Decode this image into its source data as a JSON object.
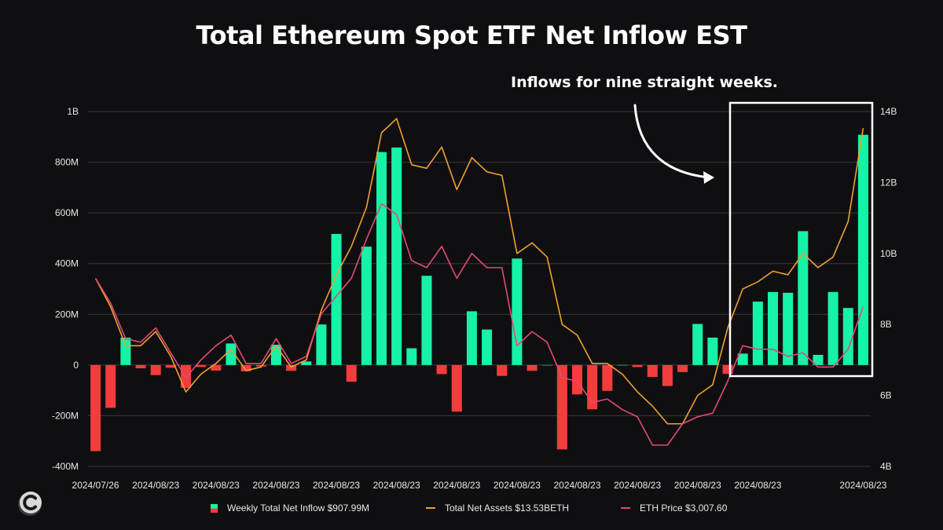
{
  "title": "Total Ethereum Spot ETF Net Inflow EST",
  "annotation": "Inflows for nine straight weeks.",
  "legend": {
    "inflow": "Weekly Total Net Inflow $907.99M",
    "assets": "Total Net Assets $13.53BETH",
    "price": "ETH Price $3,007.60"
  },
  "colors": {
    "positive": "#16f2a6",
    "negative": "#f43c3c",
    "assets_line": "#f0a030",
    "price_line": "#e04a78",
    "background": "#0f0f11",
    "grid": "#3a3a3e"
  },
  "icons": {
    "logo": "c-logo-icon",
    "arrow": "curved-arrow-icon"
  },
  "chart_data": {
    "type": "bar",
    "title": "Total Ethereum Spot ETF Net Inflow EST",
    "x_tick_labels": [
      "2024/07/26",
      "2024/08/23",
      "2024/08/23",
      "2024/08/23",
      "2024/08/23",
      "2024/08/23",
      "2024/08/23",
      "2024/08/23",
      "2024/08/23",
      "2024/08/23",
      "2024/08/23",
      "2024/08/23",
      "2024/08/23"
    ],
    "y_left": {
      "ticks": [
        "-400M",
        "-200M",
        "0",
        "200M",
        "400M",
        "600M",
        "800M",
        "1B"
      ],
      "lim": [
        -400,
        1000
      ],
      "unit": "M"
    },
    "y_right": {
      "ticks": [
        "4B",
        "6B",
        "8B",
        "10B",
        "12B",
        "14B"
      ],
      "lim": [
        4,
        14
      ],
      "unit": "B"
    },
    "series": [
      {
        "name": "Weekly Total Net Inflow $907.99M",
        "type": "bar",
        "values": [
          -340,
          -169,
          108,
          -13,
          -40,
          -11,
          -90,
          -8,
          -22,
          85,
          -25,
          -6,
          80,
          -23,
          14,
          160,
          517,
          -66,
          467,
          840,
          858,
          66,
          352,
          -36,
          -184,
          212,
          140,
          -43,
          420,
          -23,
          0,
          -333,
          -116,
          -175,
          -102,
          0,
          -8,
          -47,
          -83,
          -28,
          162,
          108,
          -35,
          45,
          250,
          288,
          285,
          528,
          40,
          288,
          225,
          908
        ]
      },
      {
        "name": "Total Net Assets $13.53BETH",
        "type": "line",
        "axis": "right",
        "values": [
          9.3,
          8.5,
          7.4,
          7.4,
          7.8,
          7.1,
          6.1,
          6.6,
          6.9,
          7.3,
          6.7,
          6.8,
          7.4,
          6.8,
          7.0,
          8.4,
          9.4,
          10.2,
          11.3,
          13.4,
          13.8,
          12.5,
          12.4,
          13.0,
          11.8,
          12.7,
          12.3,
          12.2,
          10.0,
          10.3,
          9.9,
          8.0,
          7.7,
          6.9,
          6.9,
          6.6,
          6.1,
          5.7,
          5.2,
          5.2,
          6.0,
          6.3,
          7.9,
          9.0,
          9.2,
          9.5,
          9.4,
          10.0,
          9.6,
          9.9,
          10.9,
          13.53
        ]
      },
      {
        "name": "ETH Price $3,007.60",
        "type": "line",
        "axis": "right",
        "values": [
          9.3,
          8.6,
          7.6,
          7.5,
          7.9,
          7.2,
          6.5,
          7.0,
          7.4,
          7.7,
          6.9,
          6.9,
          7.6,
          6.9,
          7.1,
          8.3,
          8.8,
          9.3,
          10.4,
          11.4,
          11.1,
          9.8,
          9.6,
          10.2,
          9.3,
          10.0,
          9.6,
          9.6,
          7.4,
          7.8,
          7.5,
          6.5,
          6.4,
          5.8,
          5.9,
          5.6,
          5.4,
          4.6,
          4.6,
          5.2,
          5.4,
          5.5,
          6.4,
          7.4,
          7.3,
          7.3,
          7.1,
          7.2,
          6.8,
          6.8,
          7.3,
          8.5
        ]
      }
    ],
    "grid": true,
    "legend_position": "bottom",
    "highlight_box": "last nine weeks"
  }
}
